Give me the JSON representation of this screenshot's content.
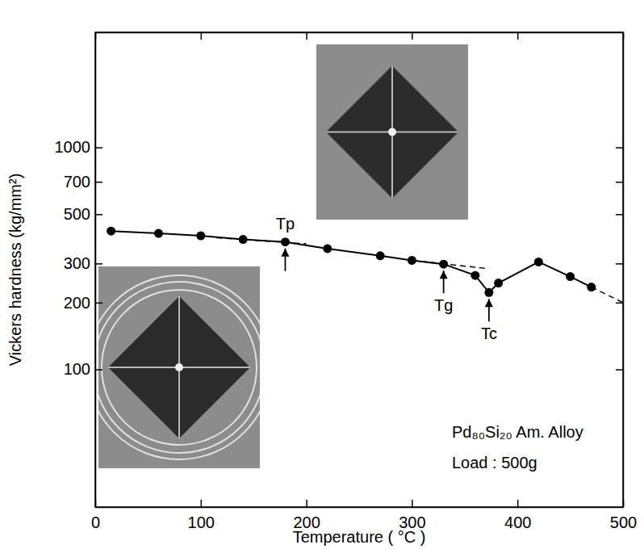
{
  "chart_data": {
    "type": "line",
    "x_label": "Temperature ( °C )",
    "y_label": "Vickers hardness (kg/mm²)",
    "xlim": [
      0,
      500
    ],
    "xticks": [
      0,
      100,
      200,
      300,
      400,
      500
    ],
    "ylim": [
      24,
      3300
    ],
    "yticks": [
      100,
      200,
      300,
      500,
      700,
      1000
    ],
    "log": "y",
    "grid": false,
    "series": [
      {
        "color": "#000000",
        "marker": "circle",
        "line_style": "solid",
        "x": [
          15,
          60,
          100,
          140,
          180,
          220,
          270,
          300,
          330,
          360,
          373,
          382,
          420,
          450,
          470
        ],
        "values": [
          420,
          410,
          400,
          385,
          375,
          350,
          325,
          310,
          298,
          265,
          222,
          245,
          305,
          262,
          235
        ]
      },
      {
        "color": "#000000",
        "marker": "none",
        "line_style": "dashed",
        "x": [
          115,
          200
        ],
        "values": [
          392,
          368
        ]
      },
      {
        "color": "#000000",
        "marker": "none",
        "line_style": "dashed",
        "x": [
          300,
          370
        ],
        "values": [
          310,
          285
        ]
      },
      {
        "color": "#000000",
        "marker": "none",
        "line_style": "dashed",
        "x": [
          470,
          500
        ],
        "values": [
          235,
          200
        ]
      }
    ],
    "annotations": [
      {
        "text": "Tp",
        "x": 180,
        "y": 375
      },
      {
        "text": "Tg",
        "x": 330,
        "y": 298
      },
      {
        "text": "Tc",
        "x": 373,
        "y": 222
      },
      {
        "text": "Pd₈₀Si₂₀ Am. Alloy"
      },
      {
        "text": "Load : 500g"
      }
    ]
  }
}
